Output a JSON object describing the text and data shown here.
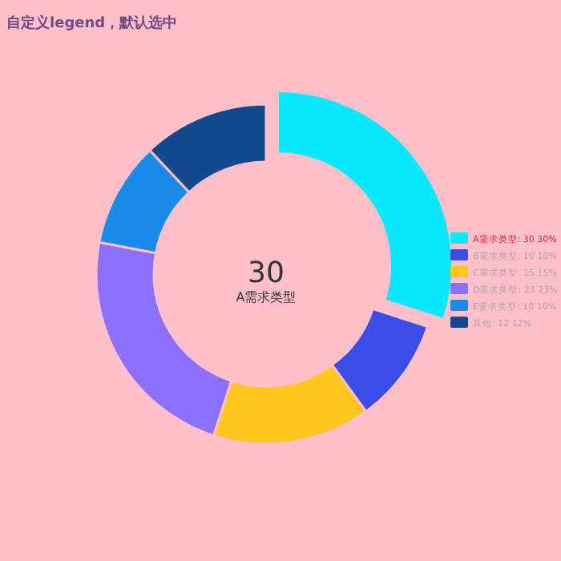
{
  "chart_data": {
    "type": "donut",
    "title": "自定义legend，默认选中",
    "categories": [
      "A需求类型: 30 30%",
      "B需求类型: 10 10%",
      "C需求类型: 15 15%",
      "D需求类型: 23 23%",
      "E需求类型: 10 10%",
      "其他: 12 12%"
    ],
    "values": [
      30,
      10,
      15,
      23,
      10,
      12
    ],
    "colors": [
      "#0ae8fc",
      "#3a4ee6",
      "#ffc61e",
      "#8c70ff",
      "#1a8ae6",
      "#134a8e"
    ],
    "legend": "right",
    "annotations": [
      "30",
      "A需求类型"
    ]
  }
}
